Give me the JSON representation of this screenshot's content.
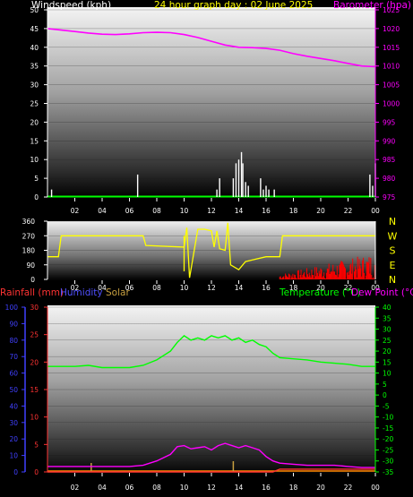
{
  "header": {
    "wind_label": "Windspeed (kph)",
    "title": "24 hour graph day : 02 June 2025",
    "baro_label": "Barometer (hpa)"
  },
  "colors": {
    "wind": "#ffffff",
    "barometer": "#ff00ff",
    "direction": "#ffff00",
    "direction_series_2": "#ff0000",
    "rainfall": "#ff3333",
    "humidity": "#4040ff",
    "solar": "#c8a040",
    "temperature": "#00ff00",
    "dewpoint": "#ff00ff",
    "axis_green": "#00ff00"
  },
  "x_ticks": [
    "02",
    "04",
    "06",
    "08",
    "10",
    "12",
    "14",
    "16",
    "18",
    "20",
    "22",
    "00"
  ],
  "direction_compass": [
    "N",
    "W",
    "S",
    "E",
    "N"
  ],
  "bottom_legend": {
    "rainfall": "Rainfall (mm)",
    "humidity": "Humidity",
    "solar": "Solar",
    "temperature": "Temperature (°C)",
    "dewpoint": "Dew Point (°C)"
  },
  "chart_data": [
    {
      "type": "line",
      "title": "24 hour graph day : 02 June 2025",
      "ylabel_left": "Windspeed (kph)",
      "ylabel_right": "Barometer (hpa)",
      "y_left_ticks": [
        0,
        5,
        10,
        15,
        20,
        25,
        30,
        35,
        40,
        45,
        50
      ],
      "y_right_ticks": [
        975,
        980,
        985,
        990,
        995,
        1000,
        1005,
        1010,
        1015,
        1020,
        1025
      ],
      "ylim_left": [
        0,
        50
      ],
      "ylim_right": [
        975,
        1025
      ],
      "x_hours": [
        0,
        1,
        2,
        3,
        4,
        5,
        6,
        7,
        8,
        9,
        10,
        11,
        12,
        13,
        14,
        15,
        16,
        17,
        18,
        19,
        20,
        21,
        22,
        23,
        24
      ],
      "series": [
        {
          "name": "Barometer (hpa)",
          "axis": "right",
          "values": [
            1020,
            1019.6,
            1019.2,
            1018.8,
            1018.5,
            1018.4,
            1018.6,
            1018.9,
            1019.0,
            1018.9,
            1018.4,
            1017.6,
            1016.6,
            1015.6,
            1015.0,
            1014.9,
            1014.7,
            1014.2,
            1013.3,
            1012.6,
            1012.0,
            1011.4,
            1010.7,
            1010.0,
            1009.8
          ]
        },
        {
          "name": "Windspeed (kph)",
          "axis": "left",
          "type": "bar",
          "gust_hours": [
            0.3,
            6.6,
            12.4,
            12.6,
            13.6,
            13.8,
            14.0,
            14.2,
            14.3,
            14.5,
            14.7,
            15.6,
            15.8,
            16.0,
            16.2,
            16.6,
            23.6,
            23.8,
            24.0
          ],
          "gust_values": [
            2,
            6,
            2,
            5,
            5,
            9,
            10,
            12,
            9,
            4,
            3,
            5,
            2,
            3,
            2,
            2,
            6,
            3,
            9
          ]
        }
      ]
    },
    {
      "type": "line",
      "ylabel": "Wind Direction",
      "y_ticks": [
        0,
        90,
        180,
        270,
        360
      ],
      "ylim": [
        0,
        360
      ],
      "x_hours": [
        0,
        0.8,
        1.0,
        7.0,
        7.2,
        10.0,
        10.2,
        10.4,
        11.0,
        11.5,
        12.0,
        12.2,
        12.4,
        12.6,
        13.0,
        13.2,
        13.4,
        14.0,
        14.5,
        15.0,
        16.0,
        17.0,
        17.2,
        24.0
      ],
      "series": [
        {
          "name": "Wind Direction",
          "values": [
            140,
            140,
            270,
            270,
            210,
            200,
            320,
            10,
            310,
            310,
            300,
            200,
            300,
            190,
            180,
            350,
            90,
            60,
            110,
            120,
            140,
            140,
            270,
            270
          ]
        }
      ]
    },
    {
      "type": "line",
      "ylabel_left": "Rainfall (mm)",
      "ylabel_right": "Temperature (°C)",
      "y_left_humidity_ticks": [
        0,
        10,
        20,
        30,
        40,
        50,
        60,
        70,
        80,
        90,
        100
      ],
      "y_left_rain_ticks": [
        0,
        5,
        10,
        15,
        20,
        25,
        30
      ],
      "y_right_ticks": [
        -35,
        -30,
        -25,
        -20,
        -15,
        -10,
        -5,
        0,
        5,
        10,
        15,
        20,
        25,
        30,
        35,
        40
      ],
      "ylim_right": [
        -35,
        40
      ],
      "x_hours": [
        0,
        1,
        2,
        3,
        4,
        5,
        6,
        7,
        8,
        9,
        9.5,
        10,
        10.5,
        11,
        11.5,
        12,
        12.5,
        13,
        13.5,
        14,
        14.5,
        15,
        15.5,
        16,
        16.5,
        17,
        18,
        19,
        20,
        21,
        22,
        23,
        24
      ],
      "series": [
        {
          "name": "Temperature (°C)",
          "values": [
            13,
            13,
            13,
            13.5,
            12.5,
            12.5,
            12.5,
            13.5,
            16,
            20,
            24,
            27,
            25,
            26,
            25,
            27,
            26,
            27,
            25,
            26,
            24,
            25,
            23,
            22,
            19,
            17,
            16.5,
            16,
            15,
            14.5,
            14,
            13,
            13
          ]
        },
        {
          "name": "Dew Point (°C)",
          "values": [
            -32.5,
            -32.5,
            -32.5,
            -32.5,
            -32.5,
            -32.5,
            -32.5,
            -32,
            -30,
            -27,
            -23.5,
            -23,
            -24.5,
            -24,
            -23.5,
            -25,
            -23,
            -22,
            -23,
            -24,
            -23,
            -24,
            -25,
            -28,
            -30,
            -31,
            -31.5,
            -32,
            -32,
            -32,
            -32.5,
            -33,
            -33
          ]
        },
        {
          "name": "Rainfall (mm)",
          "values": [
            0,
            0,
            0,
            0,
            0,
            0,
            0,
            0,
            0,
            0,
            0,
            0,
            0,
            0,
            0,
            0,
            0,
            0,
            0,
            0,
            0,
            0,
            0,
            0,
            0,
            0.5,
            0.5,
            0.5,
            0.5,
            0.5,
            0.5,
            0.5,
            0.5
          ]
        }
      ]
    }
  ]
}
